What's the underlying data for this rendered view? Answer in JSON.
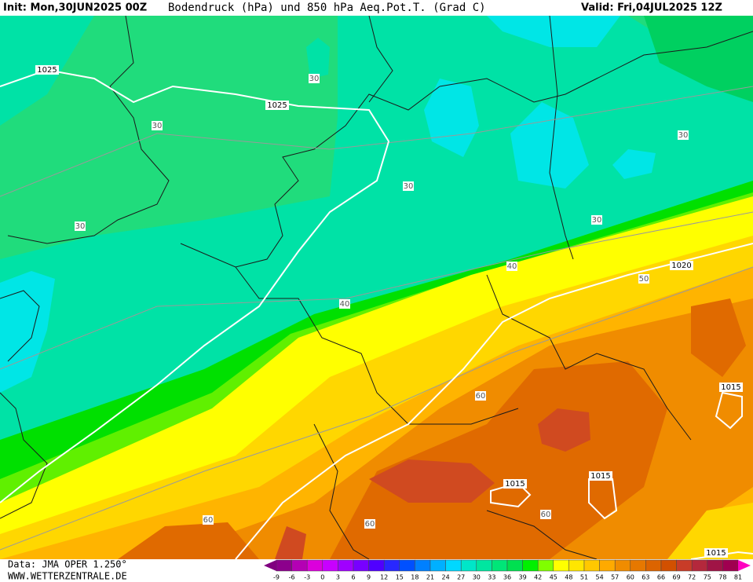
{
  "header": {
    "init": "Init: Mon,30JUN2025 00Z",
    "title": "Bodendruck (hPa) und 850 hPa Aeq.Pot.T. (Grad C)",
    "valid": "Valid: Fri,04JUL2025 12Z"
  },
  "isobar_labels": [
    1025,
    1025,
    1020,
    1015,
    1015,
    1015,
    1015
  ],
  "theta_labels": [
    30,
    30,
    30,
    30,
    30,
    30,
    40,
    40,
    50,
    60,
    60,
    60,
    60
  ],
  "footer": {
    "data_source": "Data: JMA OPER 1.250°",
    "website": "WWW.WETTERZENTRALE.DE"
  },
  "colorbar": {
    "labels": [
      -9,
      -6,
      -3,
      0,
      3,
      6,
      9,
      12,
      15,
      18,
      21,
      24,
      27,
      30,
      33,
      36,
      39,
      42,
      45,
      48,
      51,
      54,
      57,
      60,
      63,
      66,
      69,
      72,
      75,
      78,
      81
    ],
    "colors": [
      "#8c008c",
      "#b400b4",
      "#dc00dc",
      "#c800ff",
      "#a000ff",
      "#7800ff",
      "#5000ff",
      "#2828ff",
      "#0050ff",
      "#0080ff",
      "#00b0ff",
      "#00d8ff",
      "#00e6c8",
      "#00e6a0",
      "#00e678",
      "#00e050",
      "#00f000",
      "#80ff00",
      "#ffff00",
      "#ffe600",
      "#ffc800",
      "#ffaa00",
      "#f08c00",
      "#e67800",
      "#dc6400",
      "#d25000",
      "#c83c28",
      "#b4283c",
      "#a01446",
      "#a00050"
    ],
    "arrow_colors": [
      "#800080",
      "#ff00c0"
    ]
  }
}
